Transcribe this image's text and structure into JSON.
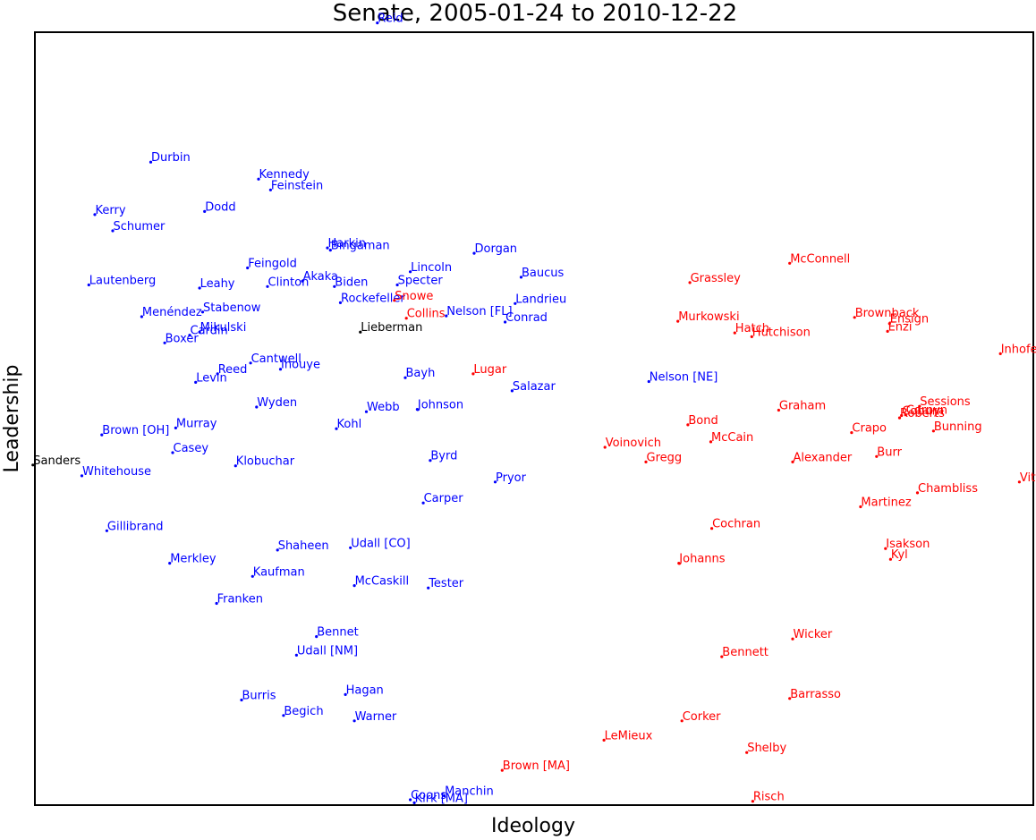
{
  "chart_data": {
    "type": "scatter",
    "title": "Senate, 2005-01-24 to 2010-12-22",
    "xlabel": "Ideology",
    "ylabel": "Leadership",
    "xlim": [
      0,
      100
    ],
    "ylim": [
      0,
      100
    ],
    "x_ticks": [],
    "y_ticks": [],
    "grid": false,
    "legend": "none",
    "colors": {
      "D": "#0000ff",
      "R": "#ff0000",
      "I": "#000000"
    },
    "series": [
      {
        "party": "D",
        "points": [
          {
            "label": "Reid",
            "x": 34.3,
            "y": 101.2
          },
          {
            "label": "Durbin",
            "x": 11.6,
            "y": 83.2
          },
          {
            "label": "Kennedy",
            "x": 22.4,
            "y": 81.0
          },
          {
            "label": "Feinstein",
            "x": 23.6,
            "y": 79.6
          },
          {
            "label": "Kerry",
            "x": 6.0,
            "y": 76.4
          },
          {
            "label": "Dodd",
            "x": 17.0,
            "y": 76.8
          },
          {
            "label": "Schumer",
            "x": 7.8,
            "y": 74.3
          },
          {
            "label": "Harkin",
            "x": 29.3,
            "y": 72.1
          },
          {
            "label": "Bingaman",
            "x": 29.6,
            "y": 71.8
          },
          {
            "label": "Dorgan",
            "x": 44.0,
            "y": 71.4
          },
          {
            "label": "Feingold",
            "x": 21.3,
            "y": 69.5
          },
          {
            "label": "Lincoln",
            "x": 37.6,
            "y": 69.0
          },
          {
            "label": "Baucus",
            "x": 48.7,
            "y": 68.3
          },
          {
            "label": "Akaka",
            "x": 26.8,
            "y": 67.8
          },
          {
            "label": "Lautenberg",
            "x": 5.4,
            "y": 67.3
          },
          {
            "label": "Leahy",
            "x": 16.5,
            "y": 66.9
          },
          {
            "label": "Clinton",
            "x": 23.3,
            "y": 67.1
          },
          {
            "label": "Biden",
            "x": 30.0,
            "y": 67.1
          },
          {
            "label": "Specter",
            "x": 36.3,
            "y": 67.3
          },
          {
            "label": "Rockefeller",
            "x": 30.6,
            "y": 65.0
          },
          {
            "label": "Landrieu",
            "x": 48.1,
            "y": 64.9
          },
          {
            "label": "Nelson [FL]",
            "x": 41.2,
            "y": 63.3
          },
          {
            "label": "Menéndez",
            "x": 10.7,
            "y": 63.2
          },
          {
            "label": "Stabenow",
            "x": 16.8,
            "y": 63.8
          },
          {
            "label": "Conrad",
            "x": 47.1,
            "y": 62.5
          },
          {
            "label": "Mikulski",
            "x": 16.5,
            "y": 61.2
          },
          {
            "label": "Cardin",
            "x": 15.5,
            "y": 60.8
          },
          {
            "label": "Boxer",
            "x": 13.0,
            "y": 59.8
          },
          {
            "label": "Cantwell",
            "x": 21.6,
            "y": 57.2
          },
          {
            "label": "Inouye",
            "x": 24.6,
            "y": 56.4
          },
          {
            "label": "Reed",
            "x": 18.3,
            "y": 55.8
          },
          {
            "label": "Levin",
            "x": 16.1,
            "y": 54.7
          },
          {
            "label": "Bayh",
            "x": 37.1,
            "y": 55.3
          },
          {
            "label": "Salazar",
            "x": 47.8,
            "y": 53.6
          },
          {
            "label": "Nelson [NE]",
            "x": 61.5,
            "y": 54.8
          },
          {
            "label": "Wyden",
            "x": 22.2,
            "y": 51.5
          },
          {
            "label": "Webb",
            "x": 33.2,
            "y": 50.9
          },
          {
            "label": "Johnson",
            "x": 38.3,
            "y": 51.2
          },
          {
            "label": "Murray",
            "x": 14.1,
            "y": 48.8
          },
          {
            "label": "Kohl",
            "x": 30.2,
            "y": 48.7
          },
          {
            "label": "Brown [OH]",
            "x": 6.7,
            "y": 47.9
          },
          {
            "label": "Casey",
            "x": 13.8,
            "y": 45.6
          },
          {
            "label": "Byrd",
            "x": 39.6,
            "y": 44.6
          },
          {
            "label": "Klobuchar",
            "x": 20.1,
            "y": 43.9
          },
          {
            "label": "Whitehouse",
            "x": 4.7,
            "y": 42.6
          },
          {
            "label": "Pryor",
            "x": 46.1,
            "y": 41.8
          },
          {
            "label": "Carper",
            "x": 38.9,
            "y": 39.1
          },
          {
            "label": "Gillibrand",
            "x": 7.2,
            "y": 35.5
          },
          {
            "label": "Udall [CO]",
            "x": 31.6,
            "y": 33.3
          },
          {
            "label": "Shaheen",
            "x": 24.3,
            "y": 33.0
          },
          {
            "label": "Merkley",
            "x": 13.5,
            "y": 31.3
          },
          {
            "label": "Kaufman",
            "x": 21.8,
            "y": 29.6
          },
          {
            "label": "McCaskill",
            "x": 32.0,
            "y": 28.4
          },
          {
            "label": "Tester",
            "x": 39.4,
            "y": 28.1
          },
          {
            "label": "Franken",
            "x": 18.2,
            "y": 26.1
          },
          {
            "label": "Bennet",
            "x": 28.2,
            "y": 21.8
          },
          {
            "label": "Udall [NM]",
            "x": 26.2,
            "y": 19.4
          },
          {
            "label": "Burris",
            "x": 20.7,
            "y": 13.6
          },
          {
            "label": "Hagan",
            "x": 31.1,
            "y": 14.3
          },
          {
            "label": "Begich",
            "x": 24.9,
            "y": 11.6
          },
          {
            "label": "Warner",
            "x": 32.0,
            "y": 10.9
          },
          {
            "label": "Coons",
            "x": 37.6,
            "y": 0.7
          },
          {
            "label": "Manchin",
            "x": 41.0,
            "y": 1.2
          },
          {
            "label": "Kirk [MA]",
            "x": 38.0,
            "y": 0.3
          }
        ]
      },
      {
        "party": "R",
        "points": [
          {
            "label": "McConnell",
            "x": 75.6,
            "y": 70.1
          },
          {
            "label": "Grassley",
            "x": 65.6,
            "y": 67.6
          },
          {
            "label": "Snowe",
            "x": 36.0,
            "y": 65.3
          },
          {
            "label": "Collins",
            "x": 37.2,
            "y": 63.0
          },
          {
            "label": "Murkowski",
            "x": 64.4,
            "y": 62.6
          },
          {
            "label": "Brownback",
            "x": 82.1,
            "y": 63.1
          },
          {
            "label": "Ensign",
            "x": 85.6,
            "y": 62.3
          },
          {
            "label": "Hatch",
            "x": 70.1,
            "y": 61.1
          },
          {
            "label": "Hutchison",
            "x": 71.8,
            "y": 60.6
          },
          {
            "label": "Enzi",
            "x": 85.4,
            "y": 61.3
          },
          {
            "label": "Inhofe",
            "x": 96.7,
            "y": 58.4
          },
          {
            "label": "Lugar",
            "x": 43.9,
            "y": 55.8
          },
          {
            "label": "Graham",
            "x": 74.5,
            "y": 51.1
          },
          {
            "label": "Sessions",
            "x": 88.6,
            "y": 51.6
          },
          {
            "label": "Cornyn",
            "x": 87.2,
            "y": 50.5
          },
          {
            "label": "Coburn",
            "x": 86.8,
            "y": 50.4
          },
          {
            "label": "Roberts",
            "x": 86.6,
            "y": 50.1
          },
          {
            "label": "Bond",
            "x": 65.4,
            "y": 49.2
          },
          {
            "label": "Bunning",
            "x": 90.0,
            "y": 48.4
          },
          {
            "label": "Crapo",
            "x": 81.8,
            "y": 48.2
          },
          {
            "label": "McCain",
            "x": 67.7,
            "y": 47.0
          },
          {
            "label": "Voinovich",
            "x": 57.1,
            "y": 46.3
          },
          {
            "label": "Gregg",
            "x": 61.2,
            "y": 44.4
          },
          {
            "label": "Alexander",
            "x": 75.9,
            "y": 44.4
          },
          {
            "label": "Burr",
            "x": 84.3,
            "y": 45.1
          },
          {
            "label": "Vitter",
            "x": 98.6,
            "y": 41.8
          },
          {
            "label": "Chambliss",
            "x": 88.4,
            "y": 40.4
          },
          {
            "label": "Martinez",
            "x": 82.7,
            "y": 38.6
          },
          {
            "label": "Cochran",
            "x": 67.8,
            "y": 35.8
          },
          {
            "label": "Isakson",
            "x": 85.2,
            "y": 33.2
          },
          {
            "label": "Kyl",
            "x": 85.7,
            "y": 31.8
          },
          {
            "label": "Johanns",
            "x": 64.5,
            "y": 31.3
          },
          {
            "label": "Wicker",
            "x": 75.9,
            "y": 21.5
          },
          {
            "label": "Bennett",
            "x": 68.8,
            "y": 19.2
          },
          {
            "label": "Barrasso",
            "x": 75.6,
            "y": 13.8
          },
          {
            "label": "Corker",
            "x": 64.8,
            "y": 10.9
          },
          {
            "label": "LeMieux",
            "x": 57.0,
            "y": 8.4
          },
          {
            "label": "Shelby",
            "x": 71.3,
            "y": 6.8
          },
          {
            "label": "Brown [MA]",
            "x": 46.8,
            "y": 4.5
          },
          {
            "label": "Risch",
            "x": 71.9,
            "y": 0.5
          }
        ]
      },
      {
        "party": "I",
        "points": [
          {
            "label": "Lieberman",
            "x": 32.6,
            "y": 61.2
          },
          {
            "label": "Sanders",
            "x": -0.2,
            "y": 44.0
          }
        ]
      }
    ]
  }
}
